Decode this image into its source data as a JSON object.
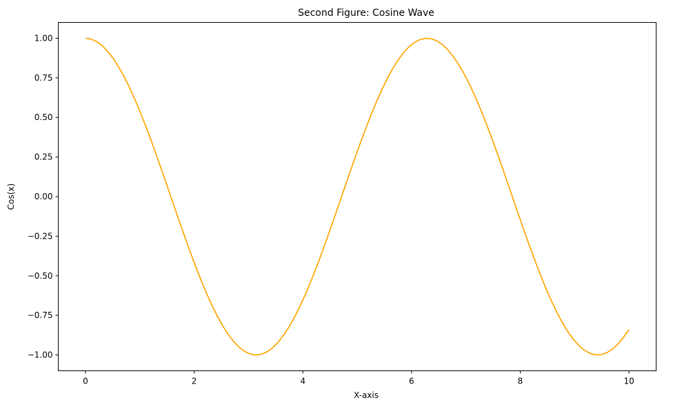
{
  "chart_data": {
    "type": "line",
    "title": "Second Figure: Cosine Wave",
    "xlabel": "X-axis",
    "ylabel": "Cos(x)",
    "xlim": [
      -0.5,
      10.5
    ],
    "ylim": [
      -1.1,
      1.1
    ],
    "grid": false,
    "legend": "none",
    "x_ticks": [
      0,
      2,
      4,
      6,
      8,
      10
    ],
    "x_tick_labels": [
      "0",
      "2",
      "4",
      "6",
      "8",
      "10"
    ],
    "y_ticks": [
      1.0,
      0.75,
      0.5,
      0.25,
      0.0,
      -0.25,
      -0.5,
      -0.75,
      -1.0
    ],
    "y_tick_labels": [
      "1.00",
      "0.75",
      "0.50",
      "0.25",
      "0.00",
      "−0.25",
      "−0.50",
      "−0.75",
      "−1.00"
    ],
    "series": [
      {
        "color": "#ffa500",
        "function": "cos",
        "x_start": 0,
        "x_end": 10,
        "samples": 100
      }
    ]
  }
}
